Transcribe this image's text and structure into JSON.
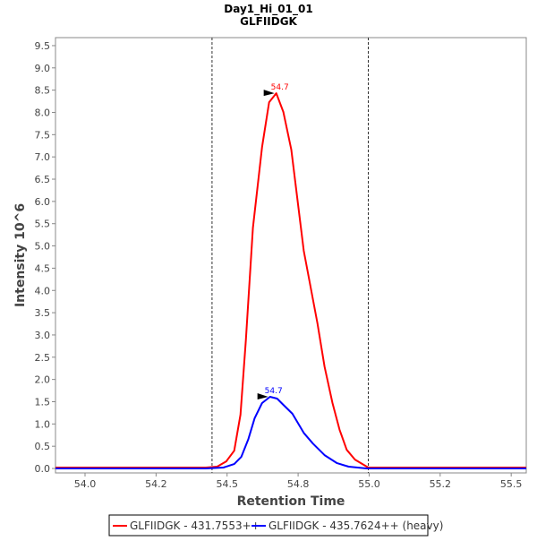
{
  "chart_data": {
    "type": "line",
    "title": "Day1_Hi_01_01",
    "subtitle": "GLFIIDGK",
    "xlabel": "Retention Time",
    "ylabel": "Intensity 10^6",
    "xlim": [
      53.896,
      55.553
    ],
    "ylim": [
      -0.1,
      9.68
    ],
    "x_ticks": [
      54.0,
      54.25,
      54.5,
      54.75,
      55.0,
      55.25,
      55.5
    ],
    "x_tick_labels": [
      "54.0",
      "54.2",
      "54.5",
      "54.8",
      "55.0",
      "55.2",
      "55.5"
    ],
    "y_ticks": [
      0,
      0.5,
      1,
      1.5,
      2,
      2.5,
      3,
      3.5,
      4,
      4.5,
      5,
      5.5,
      6,
      6.5,
      7,
      7.5,
      8,
      8.5,
      9,
      9.5
    ],
    "y_tick_labels": [
      "0.0",
      "0.5",
      "1.0",
      "1.5",
      "2.0",
      "2.5",
      "3.0",
      "3.5",
      "4.0",
      "4.5",
      "5.0",
      "5.5",
      "6.0",
      "6.5",
      "7.0",
      "7.5",
      "8.0",
      "8.5",
      "9.0",
      "9.5"
    ],
    "grid": false,
    "boundaries": [
      54.447,
      54.997
    ],
    "legend_position": "bottom",
    "series": [
      {
        "name": "GLFIIDGK - 431.7553++",
        "color": "#ff0000",
        "peak_label": "54.7",
        "peak": [
          54.673,
          8.43
        ],
        "x": [
          53.896,
          54.425,
          54.465,
          54.497,
          54.525,
          54.547,
          54.566,
          54.591,
          54.623,
          54.648,
          54.673,
          54.698,
          54.726,
          54.77,
          54.818,
          54.843,
          54.871,
          54.896,
          54.921,
          54.95,
          54.997,
          55.553
        ],
        "y": [
          0.02,
          0.02,
          0.04,
          0.16,
          0.4,
          1.21,
          2.88,
          5.41,
          7.22,
          8.23,
          8.43,
          8.01,
          7.16,
          4.89,
          3.26,
          2.29,
          1.47,
          0.87,
          0.42,
          0.2,
          0.02,
          0.02
        ]
      },
      {
        "name": "GLFIIDGK - 435.7624++ (heavy)",
        "color": "#0000ff",
        "peak_label": "54.7",
        "peak": [
          54.651,
          1.61
        ],
        "x": [
          53.896,
          54.425,
          54.487,
          54.525,
          54.55,
          54.575,
          54.597,
          54.623,
          54.651,
          54.676,
          54.698,
          54.73,
          54.77,
          54.802,
          54.843,
          54.887,
          54.928,
          54.991,
          55.553
        ],
        "y": [
          0.0,
          0.0,
          0.02,
          0.1,
          0.26,
          0.66,
          1.13,
          1.47,
          1.61,
          1.57,
          1.43,
          1.23,
          0.8,
          0.56,
          0.3,
          0.12,
          0.04,
          0.0,
          0.0
        ]
      }
    ]
  }
}
